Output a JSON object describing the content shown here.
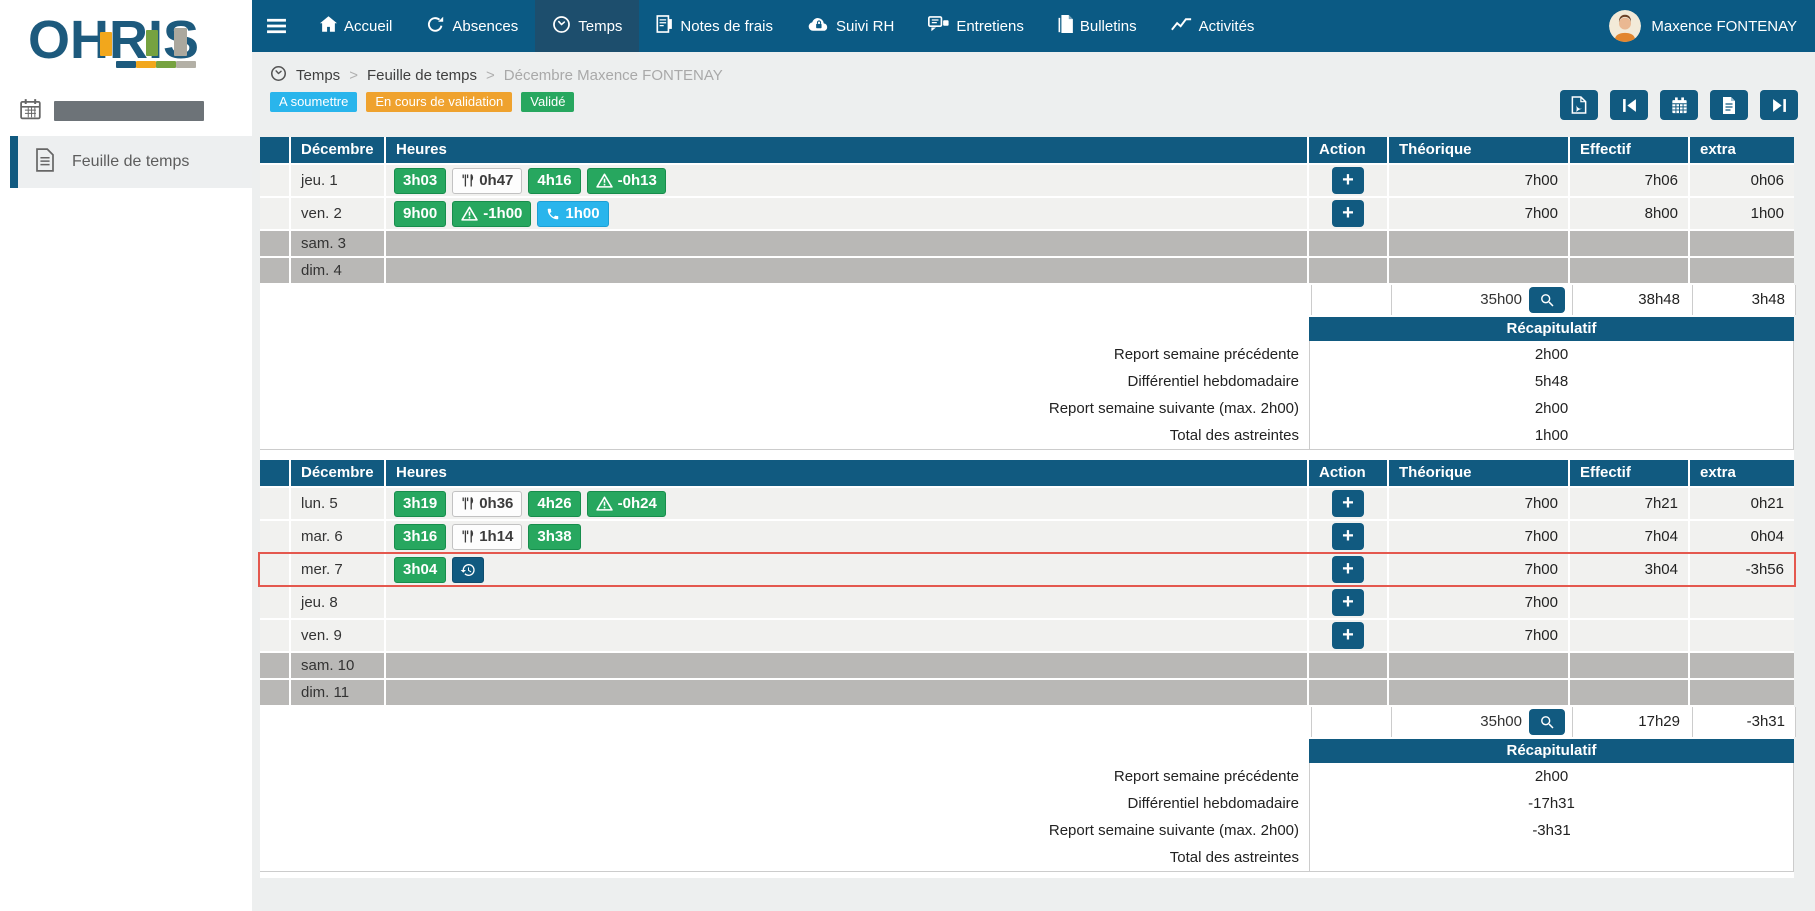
{
  "nav": {
    "items": [
      {
        "label": "Accueil",
        "icon": "home-icon"
      },
      {
        "label": "Absences",
        "icon": "circular-arrow-icon"
      },
      {
        "label": "Temps",
        "icon": "clock-icon",
        "active": true
      },
      {
        "label": "Notes de frais",
        "icon": "receipt-icon"
      },
      {
        "label": "Suivi RH",
        "icon": "cloud-lock-icon"
      },
      {
        "label": "Entretiens",
        "icon": "chat-icon"
      },
      {
        "label": "Bulletins",
        "icon": "document-icon"
      },
      {
        "label": "Activités",
        "icon": "line-chart-icon"
      }
    ],
    "user": "Maxence FONTENAY"
  },
  "sidebar": {
    "logo": "OHRIS",
    "menu_item": "Feuille de temps"
  },
  "breadcrumb": {
    "separator": ">",
    "items": [
      "Temps",
      "Feuille de temps",
      "Décembre Maxence FONTENAY"
    ]
  },
  "badges": [
    {
      "label": "A soumettre",
      "color": "#29b5ec"
    },
    {
      "label": "En cours de validation",
      "color": "#efa22e"
    },
    {
      "label": "Validé",
      "color": "#27a75f"
    }
  ],
  "toolbar": {
    "buttons": [
      "export-pdf-button",
      "previous-period-button",
      "calendar-button",
      "export-document-button",
      "next-period-button"
    ]
  },
  "table_columns": {
    "month": "Décembre",
    "hours": "Heures",
    "action": "Action",
    "theoretical": "Théorique",
    "actual": "Effectif",
    "extra": "extra"
  },
  "colors": {
    "primary": "#115a80",
    "nav": "#0b5a84",
    "green_chip": "#27a75f",
    "phone_chip": "#29b5ec",
    "weekend_row": "#b9b8b6",
    "highlight_border": "#e4584e"
  },
  "weeks": [
    {
      "rows": [
        {
          "day": "jeu. 1",
          "type": "work",
          "chips": [
            {
              "kind": "time",
              "label": "3h03"
            },
            {
              "kind": "meal",
              "label": "0h47"
            },
            {
              "kind": "time",
              "label": "4h16"
            },
            {
              "kind": "warning",
              "label": "-0h13"
            }
          ],
          "theoretical": "7h00",
          "actual": "7h06",
          "extra": "0h06"
        },
        {
          "day": "ven. 2",
          "type": "work",
          "chips": [
            {
              "kind": "time",
              "label": "9h00"
            },
            {
              "kind": "warning",
              "label": "-1h00"
            },
            {
              "kind": "phone",
              "label": "1h00"
            }
          ],
          "theoretical": "7h00",
          "actual": "8h00",
          "extra": "1h00"
        },
        {
          "day": "sam. 3",
          "type": "weekend",
          "chips": []
        },
        {
          "day": "dim. 4",
          "type": "weekend",
          "chips": []
        }
      ],
      "totals": {
        "theoretical": "35h00",
        "actual": "38h48",
        "extra": "3h48"
      },
      "recap": {
        "title": "Récapitulatif",
        "rows": [
          {
            "label": "Report semaine précédente",
            "value": "2h00"
          },
          {
            "label": "Différentiel hebdomadaire",
            "value": "5h48"
          },
          {
            "label": "Report semaine suivante (max. 2h00)",
            "value": "2h00"
          },
          {
            "label": "Total des astreintes",
            "value": "1h00"
          }
        ]
      }
    },
    {
      "rows": [
        {
          "day": "lun. 5",
          "type": "work",
          "chips": [
            {
              "kind": "time",
              "label": "3h19"
            },
            {
              "kind": "meal",
              "label": "0h36"
            },
            {
              "kind": "time",
              "label": "4h26"
            },
            {
              "kind": "warning",
              "label": "-0h24"
            }
          ],
          "theoretical": "7h00",
          "actual": "7h21",
          "extra": "0h21"
        },
        {
          "day": "mar. 6",
          "type": "work",
          "chips": [
            {
              "kind": "time",
              "label": "3h16"
            },
            {
              "kind": "meal",
              "label": "1h14"
            },
            {
              "kind": "time",
              "label": "3h38"
            }
          ],
          "theoretical": "7h00",
          "actual": "7h04",
          "extra": "0h04"
        },
        {
          "day": "mer. 7",
          "type": "work",
          "highlighted": true,
          "chips": [
            {
              "kind": "time",
              "label": "3h04"
            },
            {
              "kind": "history",
              "label": ""
            }
          ],
          "theoretical": "7h00",
          "actual": "3h04",
          "extra": "-3h56"
        },
        {
          "day": "jeu. 8",
          "type": "work",
          "chips": [],
          "theoretical": "7h00",
          "actual": "",
          "extra": ""
        },
        {
          "day": "ven. 9",
          "type": "work",
          "chips": [],
          "theoretical": "7h00",
          "actual": "",
          "extra": ""
        },
        {
          "day": "sam. 10",
          "type": "weekend",
          "chips": []
        },
        {
          "day": "dim. 11",
          "type": "weekend",
          "chips": []
        }
      ],
      "totals": {
        "theoretical": "35h00",
        "actual": "17h29",
        "extra": "-3h31"
      },
      "recap": {
        "title": "Récapitulatif",
        "rows": [
          {
            "label": "Report semaine précédente",
            "value": "2h00"
          },
          {
            "label": "Différentiel hebdomadaire",
            "value": "-17h31"
          },
          {
            "label": "Report semaine suivante (max. 2h00)",
            "value": "-3h31"
          },
          {
            "label": "Total des astreintes",
            "value": ""
          }
        ]
      }
    }
  ]
}
